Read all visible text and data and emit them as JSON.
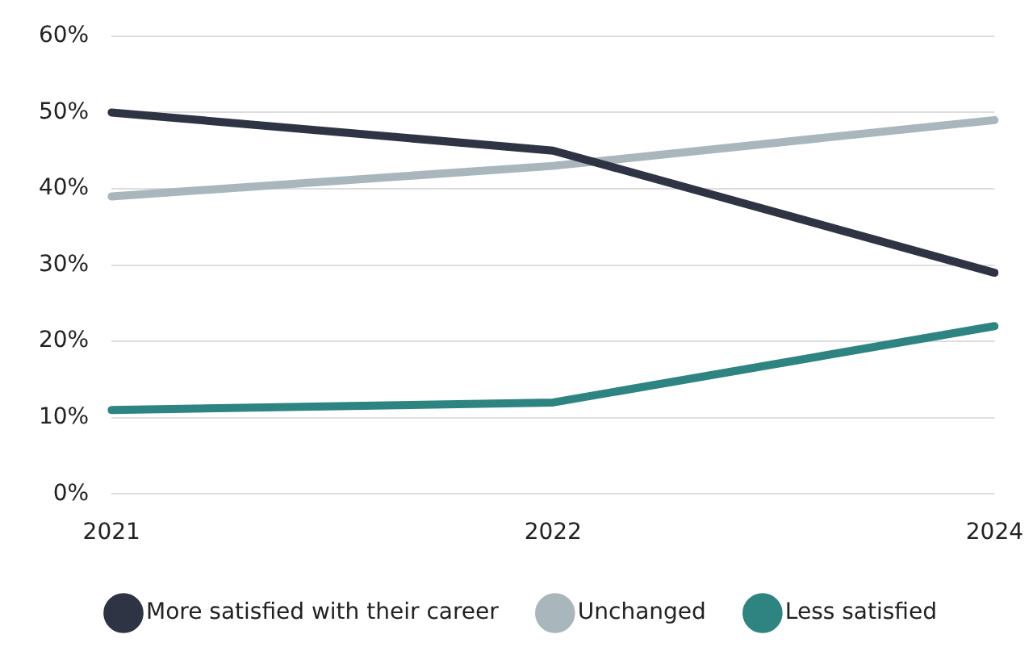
{
  "chart_data": {
    "type": "line",
    "categories": [
      "2021",
      "2022",
      "2024"
    ],
    "series": [
      {
        "name": "More satisfied with their career",
        "color": "#2f3444",
        "values": [
          50,
          45,
          29
        ]
      },
      {
        "name": "Unchanged",
        "color": "#a9b7bd",
        "values": [
          39,
          43,
          49
        ]
      },
      {
        "name": "Less satisfied",
        "color": "#2e8480",
        "values": [
          11,
          12,
          22
        ]
      }
    ],
    "ylim": [
      0,
      60
    ],
    "yticks": [
      {
        "value": 0,
        "label": "0%"
      },
      {
        "value": 10,
        "label": "10%"
      },
      {
        "value": 20,
        "label": "20%"
      },
      {
        "value": 30,
        "label": "30%"
      },
      {
        "value": 40,
        "label": "40%"
      },
      {
        "value": 50,
        "label": "50%"
      },
      {
        "value": 60,
        "label": "60%"
      }
    ],
    "grid": "y",
    "legend": "bottom",
    "marker": "none",
    "line_style": "solid"
  }
}
